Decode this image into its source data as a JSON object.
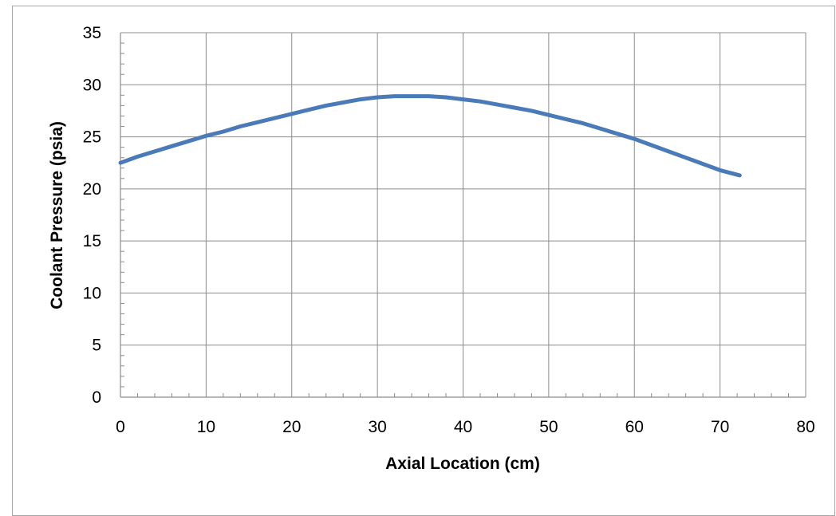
{
  "chart_data": {
    "type": "line",
    "title": "",
    "xlabel": "Axial Location (cm)",
    "ylabel": "Coolant Pressure (psia)",
    "xlim": [
      0,
      80
    ],
    "ylim": [
      0,
      35
    ],
    "xticks": [
      0,
      10,
      20,
      30,
      40,
      50,
      60,
      70,
      80
    ],
    "yticks": [
      0,
      5,
      10,
      15,
      20,
      25,
      30,
      35
    ],
    "x_minor_step": 2,
    "y_minor_step": 1,
    "grid": true,
    "legend": "none",
    "series": [
      {
        "color": "#4a7ab8",
        "x": [
          0,
          2,
          4,
          6,
          8,
          10,
          12,
          14,
          16,
          18,
          20,
          22,
          24,
          26,
          28,
          30,
          32,
          34,
          36,
          38,
          40,
          42,
          44,
          46,
          48,
          50,
          52,
          54,
          56,
          58,
          60,
          62,
          64,
          66,
          68,
          70,
          72.3
        ],
        "y": [
          22.5,
          23.1,
          23.6,
          24.1,
          24.6,
          25.1,
          25.5,
          26.0,
          26.4,
          26.8,
          27.2,
          27.6,
          28.0,
          28.3,
          28.6,
          28.8,
          28.9,
          28.9,
          28.9,
          28.8,
          28.6,
          28.4,
          28.1,
          27.8,
          27.5,
          27.1,
          26.7,
          26.3,
          25.8,
          25.3,
          24.8,
          24.2,
          23.6,
          23.0,
          22.4,
          21.8,
          21.3
        ]
      }
    ]
  }
}
